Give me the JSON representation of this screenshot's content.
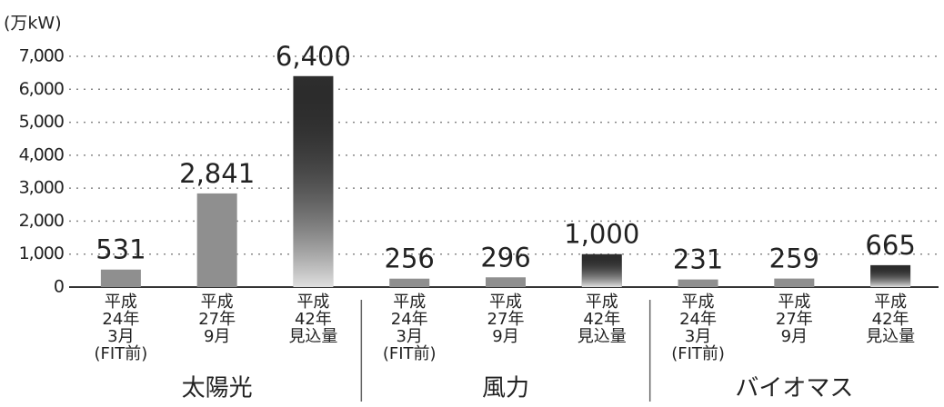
{
  "chart_data": {
    "type": "bar",
    "y_unit": "(万kW)",
    "groups": [
      "太陽光",
      "風力",
      "バイオマス"
    ],
    "categories": [
      [
        "平成",
        "24年",
        "3月",
        "(FIT前)"
      ],
      [
        "平成",
        "27年",
        "9月"
      ],
      [
        "平成",
        "42年",
        "見込量"
      ],
      [
        "平成",
        "24年",
        "3月",
        "(FIT前)"
      ],
      [
        "平成",
        "27年",
        "9月"
      ],
      [
        "平成",
        "42年",
        "見込量"
      ],
      [
        "平成",
        "24年",
        "3月",
        "(FIT前)"
      ],
      [
        "平成",
        "27年",
        "9月"
      ],
      [
        "平成",
        "42年",
        "見込量"
      ]
    ],
    "values": [
      531,
      2841,
      6400,
      256,
      296,
      1000,
      231,
      259,
      665
    ],
    "value_labels": [
      "531",
      "2,841",
      "6,400",
      "256",
      "296",
      "1,000",
      "231",
      "259",
      "665"
    ],
    "colors": [
      "#8f8f8f",
      "#8f8f8f",
      "#2e2e2e",
      "#8f8f8f",
      "#8f8f8f",
      "#2e2e2e",
      "#8f8f8f",
      "#8f8f8f",
      "#2e2e2e"
    ],
    "ylim": [
      0,
      7000
    ],
    "yticks": [
      0,
      {
        "value": 1000,
        "label": "1,000"
      },
      {
        "value": 2000,
        "label": "2,000"
      },
      {
        "value": 3000,
        "label": "3,000"
      },
      {
        "value": 4000,
        "label": "4,000"
      },
      {
        "value": 5000,
        "label": "5,000"
      },
      {
        "value": 6000,
        "label": "6,000"
      },
      {
        "value": 7000,
        "label": "7,000"
      }
    ],
    "grid": true
  }
}
